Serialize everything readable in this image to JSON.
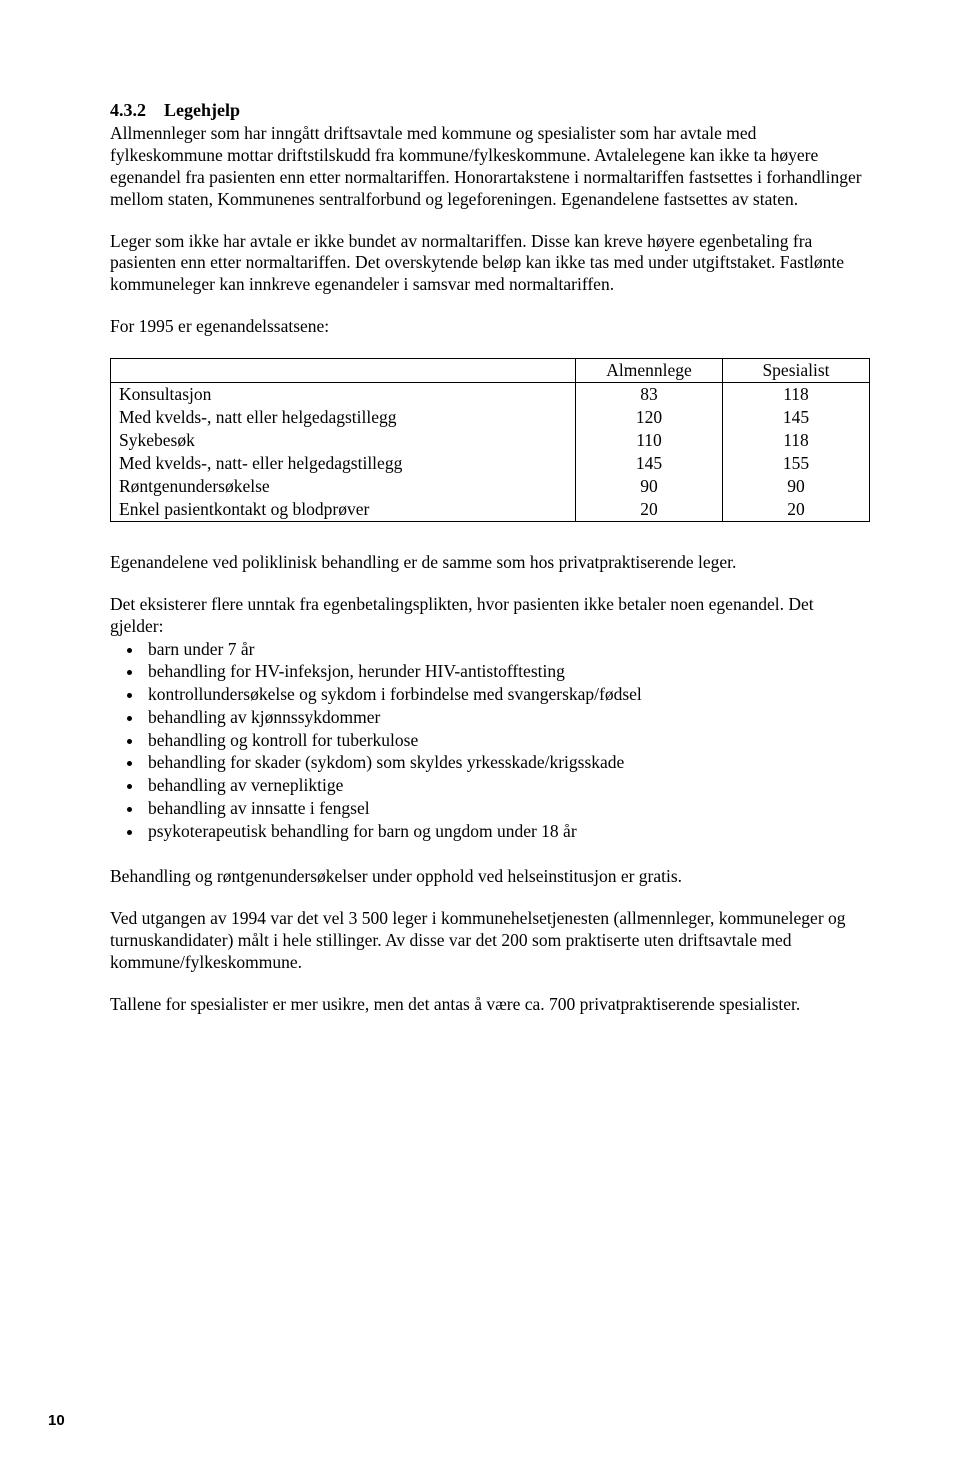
{
  "heading": {
    "number": "4.3.2",
    "title": "Legehjelp"
  },
  "para1": "Allmennleger som har inngått driftsavtale med kommune og spesialister som har avtale med fylkeskommune mottar driftstilskudd fra kommune/fylkeskommune. Avtalelegene kan ikke ta høyere egenandel fra pasienten enn etter normaltariffen. Honorartakstene i normaltariffen fastsettes i forhandlinger mellom staten, Kommunenes sentralforbund og legeforeningen. Egenandelene fastsettes av staten.",
  "para2": "Leger som ikke har avtale er ikke bundet av normaltariffen. Disse kan kreve høyere egenbetaling fra pasienten enn etter normaltariffen. Det overskytende beløp kan ikke tas med under utgiftstaket. Fastlønte kommuneleger kan innkreve egenandeler i samsvar med normaltariffen.",
  "para3": "For 1995 er egenandelssatsene:",
  "table": {
    "columns": [
      "",
      "Almennlege",
      "Spesialist"
    ],
    "rows": [
      [
        "Konsultasjon",
        "83",
        "118"
      ],
      [
        "Med kvelds-, natt eller helgedagstillegg",
        "120",
        "145"
      ],
      [
        "Sykebesøk",
        "110",
        "118"
      ],
      [
        "Med kvelds-, natt- eller helgedagstillegg",
        "145",
        "155"
      ],
      [
        "Røntgenundersøkelse",
        "90",
        "90"
      ],
      [
        "Enkel pasientkontakt og blodprøver",
        "20",
        "20"
      ]
    ]
  },
  "para4": "Egenandelene ved poliklinisk behandling er de samme som hos privatpraktiserende leger.",
  "para5": "Det eksisterer flere unntak fra egenbetalingsplikten, hvor pasienten ikke betaler noen egenandel. Det gjelder:",
  "bullets": [
    "barn under 7 år",
    "behandling for HV-infeksjon, herunder HIV-antistofftesting",
    "kontrollundersøkelse og sykdom i forbindelse med svangerskap/fødsel",
    "behandling av kjønnssykdommer",
    "behandling og kontroll for tuberkulose",
    "behandling for skader (sykdom) som skyldes yrkesskade/krigsskade",
    "behandling av vernepliktige",
    "behandling av innsatte i fengsel",
    "psykoterapeutisk behandling for barn og ungdom under 18 år"
  ],
  "para6": "Behandling og røntgenundersøkelser under opphold ved helseinstitusjon er gratis.",
  "para7": "Ved utgangen av 1994 var det vel 3 500 leger i kommunehelsetjenesten (allmennleger, kommuneleger og turnuskandidater) målt i hele stillinger. Av disse var det 200 som praktiserte uten driftsavtale med kommune/fylkeskommune.",
  "para8": "Tallene for spesialister er mer usikre, men det antas å være ca. 700 privatpraktiserende spesialister.",
  "pageNumber": "10"
}
